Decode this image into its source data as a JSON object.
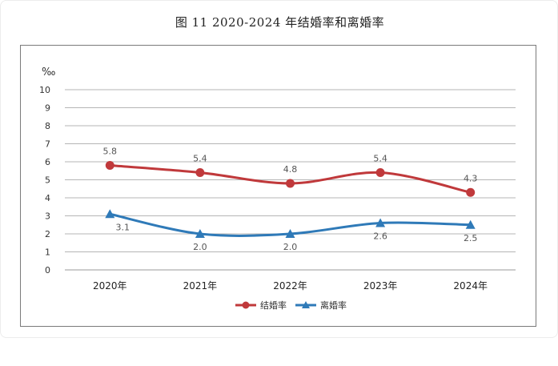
{
  "figure_title": "图 11 2020-2024 年结婚率和离婚率",
  "chart_data": {
    "type": "line",
    "title": "图 11 2020-2024 年结婚率和离婚率",
    "xlabel": "",
    "ylabel": "‰",
    "categories": [
      "2020年",
      "2021年",
      "2022年",
      "2023年",
      "2024年"
    ],
    "ylim": [
      0,
      10
    ],
    "yticks": [
      "0",
      "1",
      "2",
      "3",
      "4",
      "5",
      "6",
      "7",
      "8",
      "9",
      "10"
    ],
    "grid": true,
    "legend_position": "bottom",
    "smooth": true,
    "series": [
      {
        "name": "结婚率",
        "values": [
          5.8,
          5.4,
          4.8,
          5.4,
          4.3
        ],
        "labels": [
          "5.8",
          "5.4",
          "4.8",
          "5.4",
          "4.3"
        ],
        "color": "#c0393b",
        "marker": "circle",
        "label_position": "above"
      },
      {
        "name": "离婚率",
        "values": [
          3.1,
          2.0,
          2.0,
          2.6,
          2.5
        ],
        "labels": [
          "3.1",
          "2.0",
          "2.0",
          "2.6",
          "2.5"
        ],
        "color": "#2f7ab8",
        "marker": "triangle",
        "label_position": "below"
      }
    ]
  }
}
